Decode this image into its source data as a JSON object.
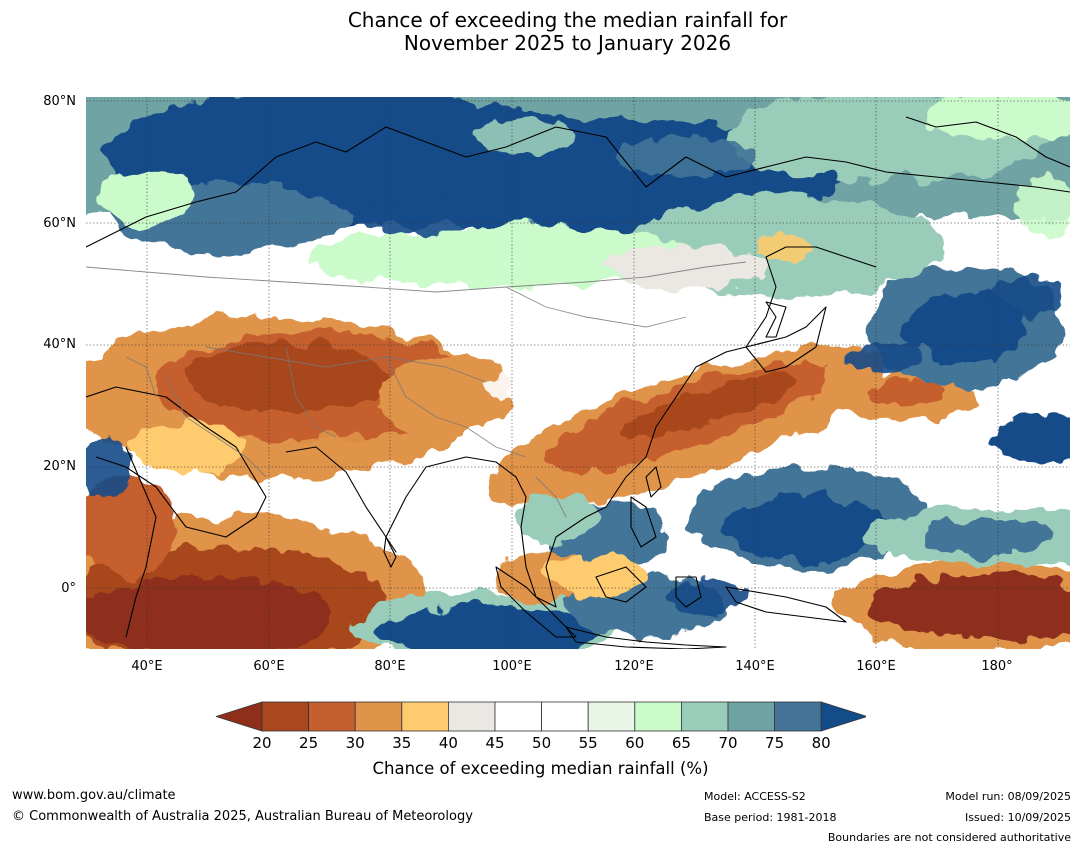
{
  "title_line1": "Chance of exceeding the median rainfall for",
  "title_line2": "November 2025 to January 2026",
  "map": {
    "lat_labels": [
      "80°N",
      "60°N",
      "40°N",
      "20°N",
      "0°"
    ],
    "lon_labels": [
      "40°E",
      "60°E",
      "80°E",
      "100°E",
      "120°E",
      "140°E",
      "160°E",
      "180°"
    ]
  },
  "colorbar": {
    "ticks": [
      "20",
      "25",
      "30",
      "35",
      "40",
      "45",
      "50",
      "55",
      "60",
      "65",
      "70",
      "75",
      "80"
    ],
    "title": "Chance of exceeding median rainfall (%)",
    "colors": {
      "below_20": "#8e2f1c",
      "20_25": "#a9471f",
      "25_30": "#c55f2e",
      "30_35": "#e0944a",
      "35_40": "#fecb6e",
      "40_45": "#ebe8e3",
      "45_50": "#ffffff",
      "50_55": "#ffffff",
      "55_60": "#e8f5e7",
      "60_65": "#cbfacb",
      "65_70": "#9acdb9",
      "70_75": "#6fa3a3",
      "75_80": "#437498",
      "above_80": "#144c89"
    }
  },
  "footer": {
    "website": "www.bom.gov.au/climate",
    "copyright": "© Commonwealth of Australia 2025, Australian Bureau of Meteorology",
    "model": "Model: ACCESS-S2",
    "base_period": "Base period: 1981-2018",
    "model_run": "Model run: 08/09/2025",
    "issued": "Issued: 10/09/2025",
    "disclaimer": "Boundaries are not considered authoritative"
  }
}
